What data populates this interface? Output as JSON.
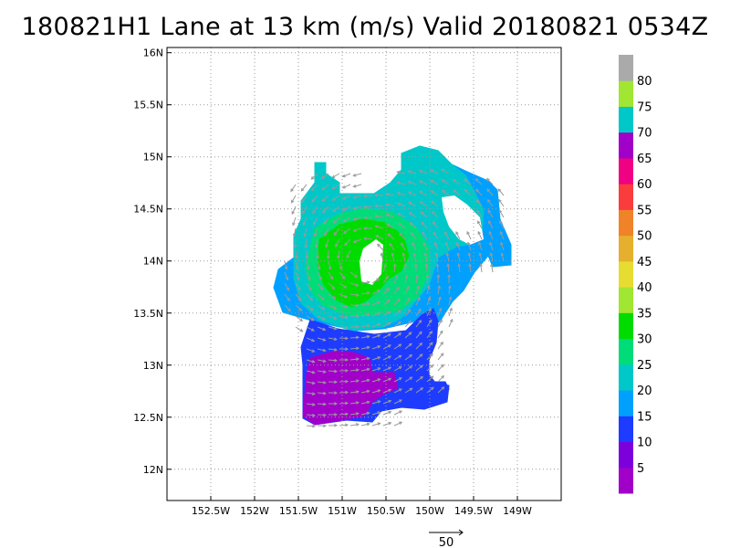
{
  "title": "180821H1 Lane at 13 km (m/s) Valid 20180821 0534Z",
  "map": {
    "lon_range": [
      -153.0,
      -148.5
    ],
    "lat_range": [
      11.7,
      16.05
    ],
    "lon_ticks": [
      "152.5W",
      "152W",
      "151.5W",
      "151W",
      "150.5W",
      "150W",
      "149.5W",
      "149W"
    ],
    "lon_tick_values": [
      -152.5,
      -152.0,
      -151.5,
      -151.0,
      -150.5,
      -150.0,
      -149.5,
      -149.0
    ],
    "lat_ticks": [
      "16N",
      "15.5N",
      "15N",
      "14.5N",
      "14N",
      "13.5N",
      "13N",
      "12.5N",
      "12N"
    ],
    "lat_tick_values": [
      16.0,
      15.5,
      15.0,
      14.5,
      14.0,
      13.5,
      13.0,
      12.5,
      12.0
    ],
    "grid": true,
    "vortex_center": {
      "lon": -150.75,
      "lat": 14.0
    }
  },
  "colorbar": {
    "labels": [
      "5",
      "10",
      "15",
      "20",
      "25",
      "30",
      "35",
      "40",
      "45",
      "50",
      "55",
      "60",
      "65",
      "70",
      "75",
      "80"
    ],
    "colors": [
      "#a000c8",
      "#7c00dc",
      "#1e3cff",
      "#00a0ff",
      "#00c8c8",
      "#00dc78",
      "#00dc00",
      "#a0e632",
      "#e6dc32",
      "#e6af2d",
      "#f08228",
      "#fa3c3c",
      "#f00082",
      "#a000c8",
      "#00c8c8",
      "#a0e632",
      "#aaaaaa"
    ]
  },
  "scale_vector": {
    "label": "50"
  },
  "field_colors": {
    "violet": "#a000c8",
    "blue": "#1e3cff",
    "light_blue": "#00a0ff",
    "teal": "#00c8c8",
    "sea_green": "#00dc78",
    "green": "#00dc00"
  }
}
